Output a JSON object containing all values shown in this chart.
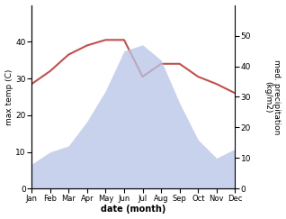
{
  "months": [
    "Jan",
    "Feb",
    "Mar",
    "Apr",
    "May",
    "Jun",
    "Jul",
    "Aug",
    "Sep",
    "Oct",
    "Nov",
    "Dec"
  ],
  "temperature": [
    28.5,
    32.0,
    36.5,
    39.0,
    40.5,
    40.5,
    30.5,
    34.0,
    34.0,
    30.5,
    28.5,
    26.0
  ],
  "rainfall": [
    8,
    12,
    14,
    22,
    32,
    45,
    47,
    42,
    28,
    16,
    10,
    13
  ],
  "temp_color": "#c0504d",
  "rainfall_color_fill": "#b8c4e8",
  "temp_ylim": [
    0,
    50
  ],
  "rain_ylim": [
    0,
    60
  ],
  "temp_yticks": [
    0,
    10,
    20,
    30,
    40
  ],
  "rain_yticks": [
    0,
    10,
    20,
    30,
    40,
    50
  ],
  "xlabel": "date (month)",
  "ylabel_left": "max temp (C)",
  "ylabel_right": "med. precipitation\n(kg/m2)",
  "bg_color": "#ffffff"
}
